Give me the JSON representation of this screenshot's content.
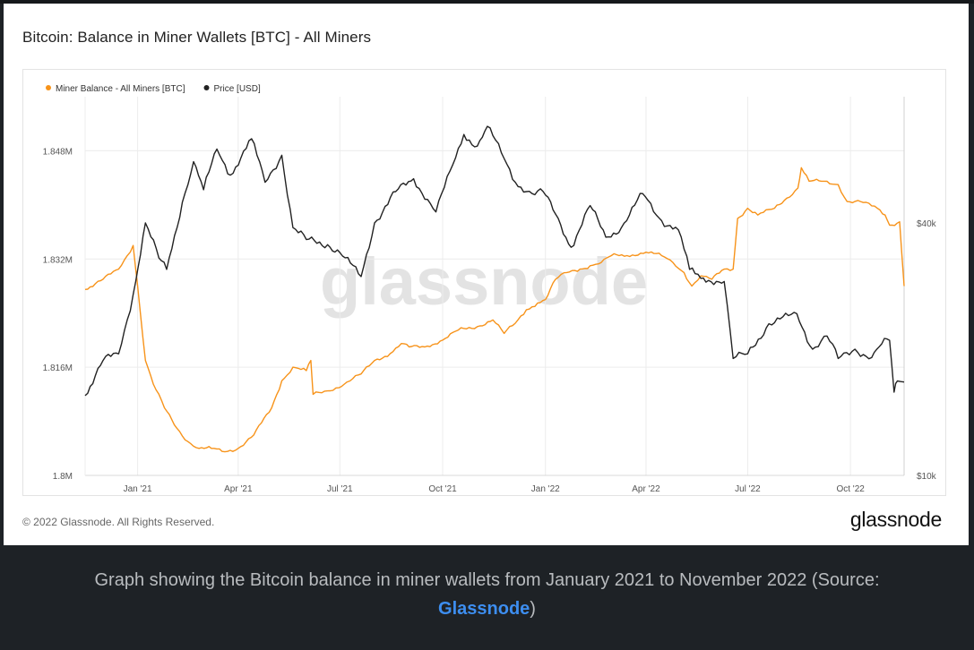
{
  "header": {
    "title": "Bitcoin: Balance in Miner Wallets [BTC] - All Miners"
  },
  "footer": {
    "copyright": "© 2022 Glassnode. All Rights Reserved.",
    "brand": "glassnode"
  },
  "watermark": "glassnode",
  "caption": {
    "text": "Graph showing the Bitcoin balance in miner wallets from January 2021 to November 2022 (Source:",
    "link": "Glassnode",
    "suffix": ")"
  },
  "colors": {
    "balance": "#f7931a",
    "price": "#222222",
    "grid": "#ececec",
    "link": "#3d8ef0"
  },
  "chart_data": {
    "type": "line",
    "title": "Bitcoin: Balance in Miner Wallets [BTC] - All Miners",
    "legend_position": "top-left",
    "x_ticks": [
      "Jan '21",
      "Apr '21",
      "Jul '21",
      "Oct '21",
      "Jan '22",
      "Apr '22",
      "Jul '22",
      "Oct '22"
    ],
    "left_axis": {
      "ticks": [
        "1.8M",
        "1.816M",
        "1.832M",
        "1.848M"
      ],
      "range": [
        1800000,
        1856000
      ]
    },
    "right_axis": {
      "ticks": [
        "$10k",
        "$40k"
      ],
      "scale": "log",
      "range": [
        10000,
        80000
      ]
    },
    "series": [
      {
        "name": "Miner Balance - All Miners [BTC]",
        "axis": "left",
        "color": "#f7931a",
        "points": [
          [
            "2020-11-15",
            1827500
          ],
          [
            "2020-12-01",
            1829000
          ],
          [
            "2020-12-15",
            1830500
          ],
          [
            "2020-12-28",
            1834000
          ],
          [
            "2021-01-01",
            1828000
          ],
          [
            "2021-01-08",
            1817000
          ],
          [
            "2021-01-15",
            1813500
          ],
          [
            "2021-01-25",
            1810000
          ],
          [
            "2021-02-05",
            1807000
          ],
          [
            "2021-02-15",
            1805000
          ],
          [
            "2021-02-25",
            1804000
          ],
          [
            "2021-03-08",
            1804000
          ],
          [
            "2021-03-20",
            1803500
          ],
          [
            "2021-04-01",
            1804000
          ],
          [
            "2021-04-15",
            1806000
          ],
          [
            "2021-05-01",
            1810000
          ],
          [
            "2021-05-10",
            1814000
          ],
          [
            "2021-05-20",
            1816000
          ],
          [
            "2021-06-01",
            1815500
          ],
          [
            "2021-06-05",
            1817000
          ],
          [
            "2021-06-07",
            1812000
          ],
          [
            "2021-06-20",
            1812500
          ],
          [
            "2021-07-05",
            1813500
          ],
          [
            "2021-07-20",
            1815000
          ],
          [
            "2021-08-01",
            1817000
          ],
          [
            "2021-08-15",
            1818000
          ],
          [
            "2021-08-25",
            1819500
          ],
          [
            "2021-09-01",
            1819000
          ],
          [
            "2021-09-15",
            1819000
          ],
          [
            "2021-10-01",
            1820000
          ],
          [
            "2021-10-15",
            1821500
          ],
          [
            "2021-11-01",
            1822000
          ],
          [
            "2021-11-15",
            1823000
          ],
          [
            "2021-11-25",
            1821000
          ],
          [
            "2021-12-05",
            1822500
          ],
          [
            "2021-12-15",
            1824500
          ],
          [
            "2021-12-25",
            1825500
          ],
          [
            "2022-01-01",
            1826000
          ],
          [
            "2022-01-10",
            1829000
          ],
          [
            "2022-01-20",
            1830000
          ],
          [
            "2022-02-01",
            1830500
          ],
          [
            "2022-02-10",
            1831000
          ],
          [
            "2022-02-20",
            1831500
          ],
          [
            "2022-03-01",
            1832500
          ],
          [
            "2022-03-15",
            1832500
          ],
          [
            "2022-04-01",
            1833000
          ],
          [
            "2022-04-15",
            1832500
          ],
          [
            "2022-04-25",
            1831500
          ],
          [
            "2022-05-05",
            1830000
          ],
          [
            "2022-05-12",
            1828000
          ],
          [
            "2022-05-20",
            1829500
          ],
          [
            "2022-05-30",
            1829000
          ],
          [
            "2022-06-10",
            1830500
          ],
          [
            "2022-06-18",
            1830500
          ],
          [
            "2022-06-22",
            1838000
          ],
          [
            "2022-07-01",
            1839500
          ],
          [
            "2022-07-10",
            1838500
          ],
          [
            "2022-07-25",
            1839500
          ],
          [
            "2022-08-05",
            1841000
          ],
          [
            "2022-08-15",
            1842500
          ],
          [
            "2022-08-18",
            1845500
          ],
          [
            "2022-08-25",
            1843500
          ],
          [
            "2022-09-05",
            1843500
          ],
          [
            "2022-09-20",
            1843000
          ],
          [
            "2022-09-28",
            1840500
          ],
          [
            "2022-10-10",
            1840500
          ],
          [
            "2022-10-25",
            1839500
          ],
          [
            "2022-11-01",
            1838500
          ],
          [
            "2022-11-05",
            1837000
          ],
          [
            "2022-11-14",
            1837500
          ],
          [
            "2022-11-18",
            1828000
          ]
        ]
      },
      {
        "name": "Price [USD]",
        "axis": "right",
        "color": "#222222",
        "points": [
          [
            "2020-11-15",
            15500
          ],
          [
            "2020-12-01",
            18800
          ],
          [
            "2020-12-15",
            19500
          ],
          [
            "2020-12-28",
            27000
          ],
          [
            "2021-01-08",
            40000
          ],
          [
            "2021-01-20",
            33000
          ],
          [
            "2021-01-27",
            31000
          ],
          [
            "2021-02-10",
            44800
          ],
          [
            "2021-02-20",
            56000
          ],
          [
            "2021-03-01",
            48000
          ],
          [
            "2021-03-13",
            60000
          ],
          [
            "2021-03-25",
            52000
          ],
          [
            "2021-04-13",
            63500
          ],
          [
            "2021-04-25",
            50000
          ],
          [
            "2021-05-10",
            58000
          ],
          [
            "2021-05-20",
            39000
          ],
          [
            "2021-06-01",
            36500
          ],
          [
            "2021-06-20",
            35500
          ],
          [
            "2021-07-01",
            34000
          ],
          [
            "2021-07-20",
            29800
          ],
          [
            "2021-08-01",
            40000
          ],
          [
            "2021-08-20",
            47500
          ],
          [
            "2021-09-05",
            51000
          ],
          [
            "2021-09-25",
            42500
          ],
          [
            "2021-10-10",
            55000
          ],
          [
            "2021-10-20",
            65000
          ],
          [
            "2021-11-01",
            61000
          ],
          [
            "2021-11-10",
            68000
          ],
          [
            "2021-11-25",
            57000
          ],
          [
            "2021-12-05",
            50000
          ],
          [
            "2021-12-20",
            47000
          ],
          [
            "2021-12-30",
            47500
          ],
          [
            "2022-01-10",
            42000
          ],
          [
            "2022-01-24",
            35000
          ],
          [
            "2022-02-10",
            44000
          ],
          [
            "2022-02-24",
            37000
          ],
          [
            "2022-03-10",
            39000
          ],
          [
            "2022-03-29",
            47000
          ],
          [
            "2022-04-15",
            40500
          ],
          [
            "2022-04-30",
            38500
          ],
          [
            "2022-05-10",
            31000
          ],
          [
            "2022-05-20",
            29500
          ],
          [
            "2022-06-10",
            29000
          ],
          [
            "2022-06-18",
            19000
          ],
          [
            "2022-07-01",
            19500
          ],
          [
            "2022-07-20",
            23000
          ],
          [
            "2022-08-14",
            24300
          ],
          [
            "2022-08-28",
            20000
          ],
          [
            "2022-09-10",
            21500
          ],
          [
            "2022-09-20",
            19000
          ],
          [
            "2022-10-05",
            20000
          ],
          [
            "2022-10-20",
            19100
          ],
          [
            "2022-10-29",
            20600
          ],
          [
            "2022-11-05",
            21000
          ],
          [
            "2022-11-09",
            15800
          ],
          [
            "2022-11-12",
            16800
          ],
          [
            "2022-11-18",
            16700
          ]
        ]
      }
    ]
  }
}
